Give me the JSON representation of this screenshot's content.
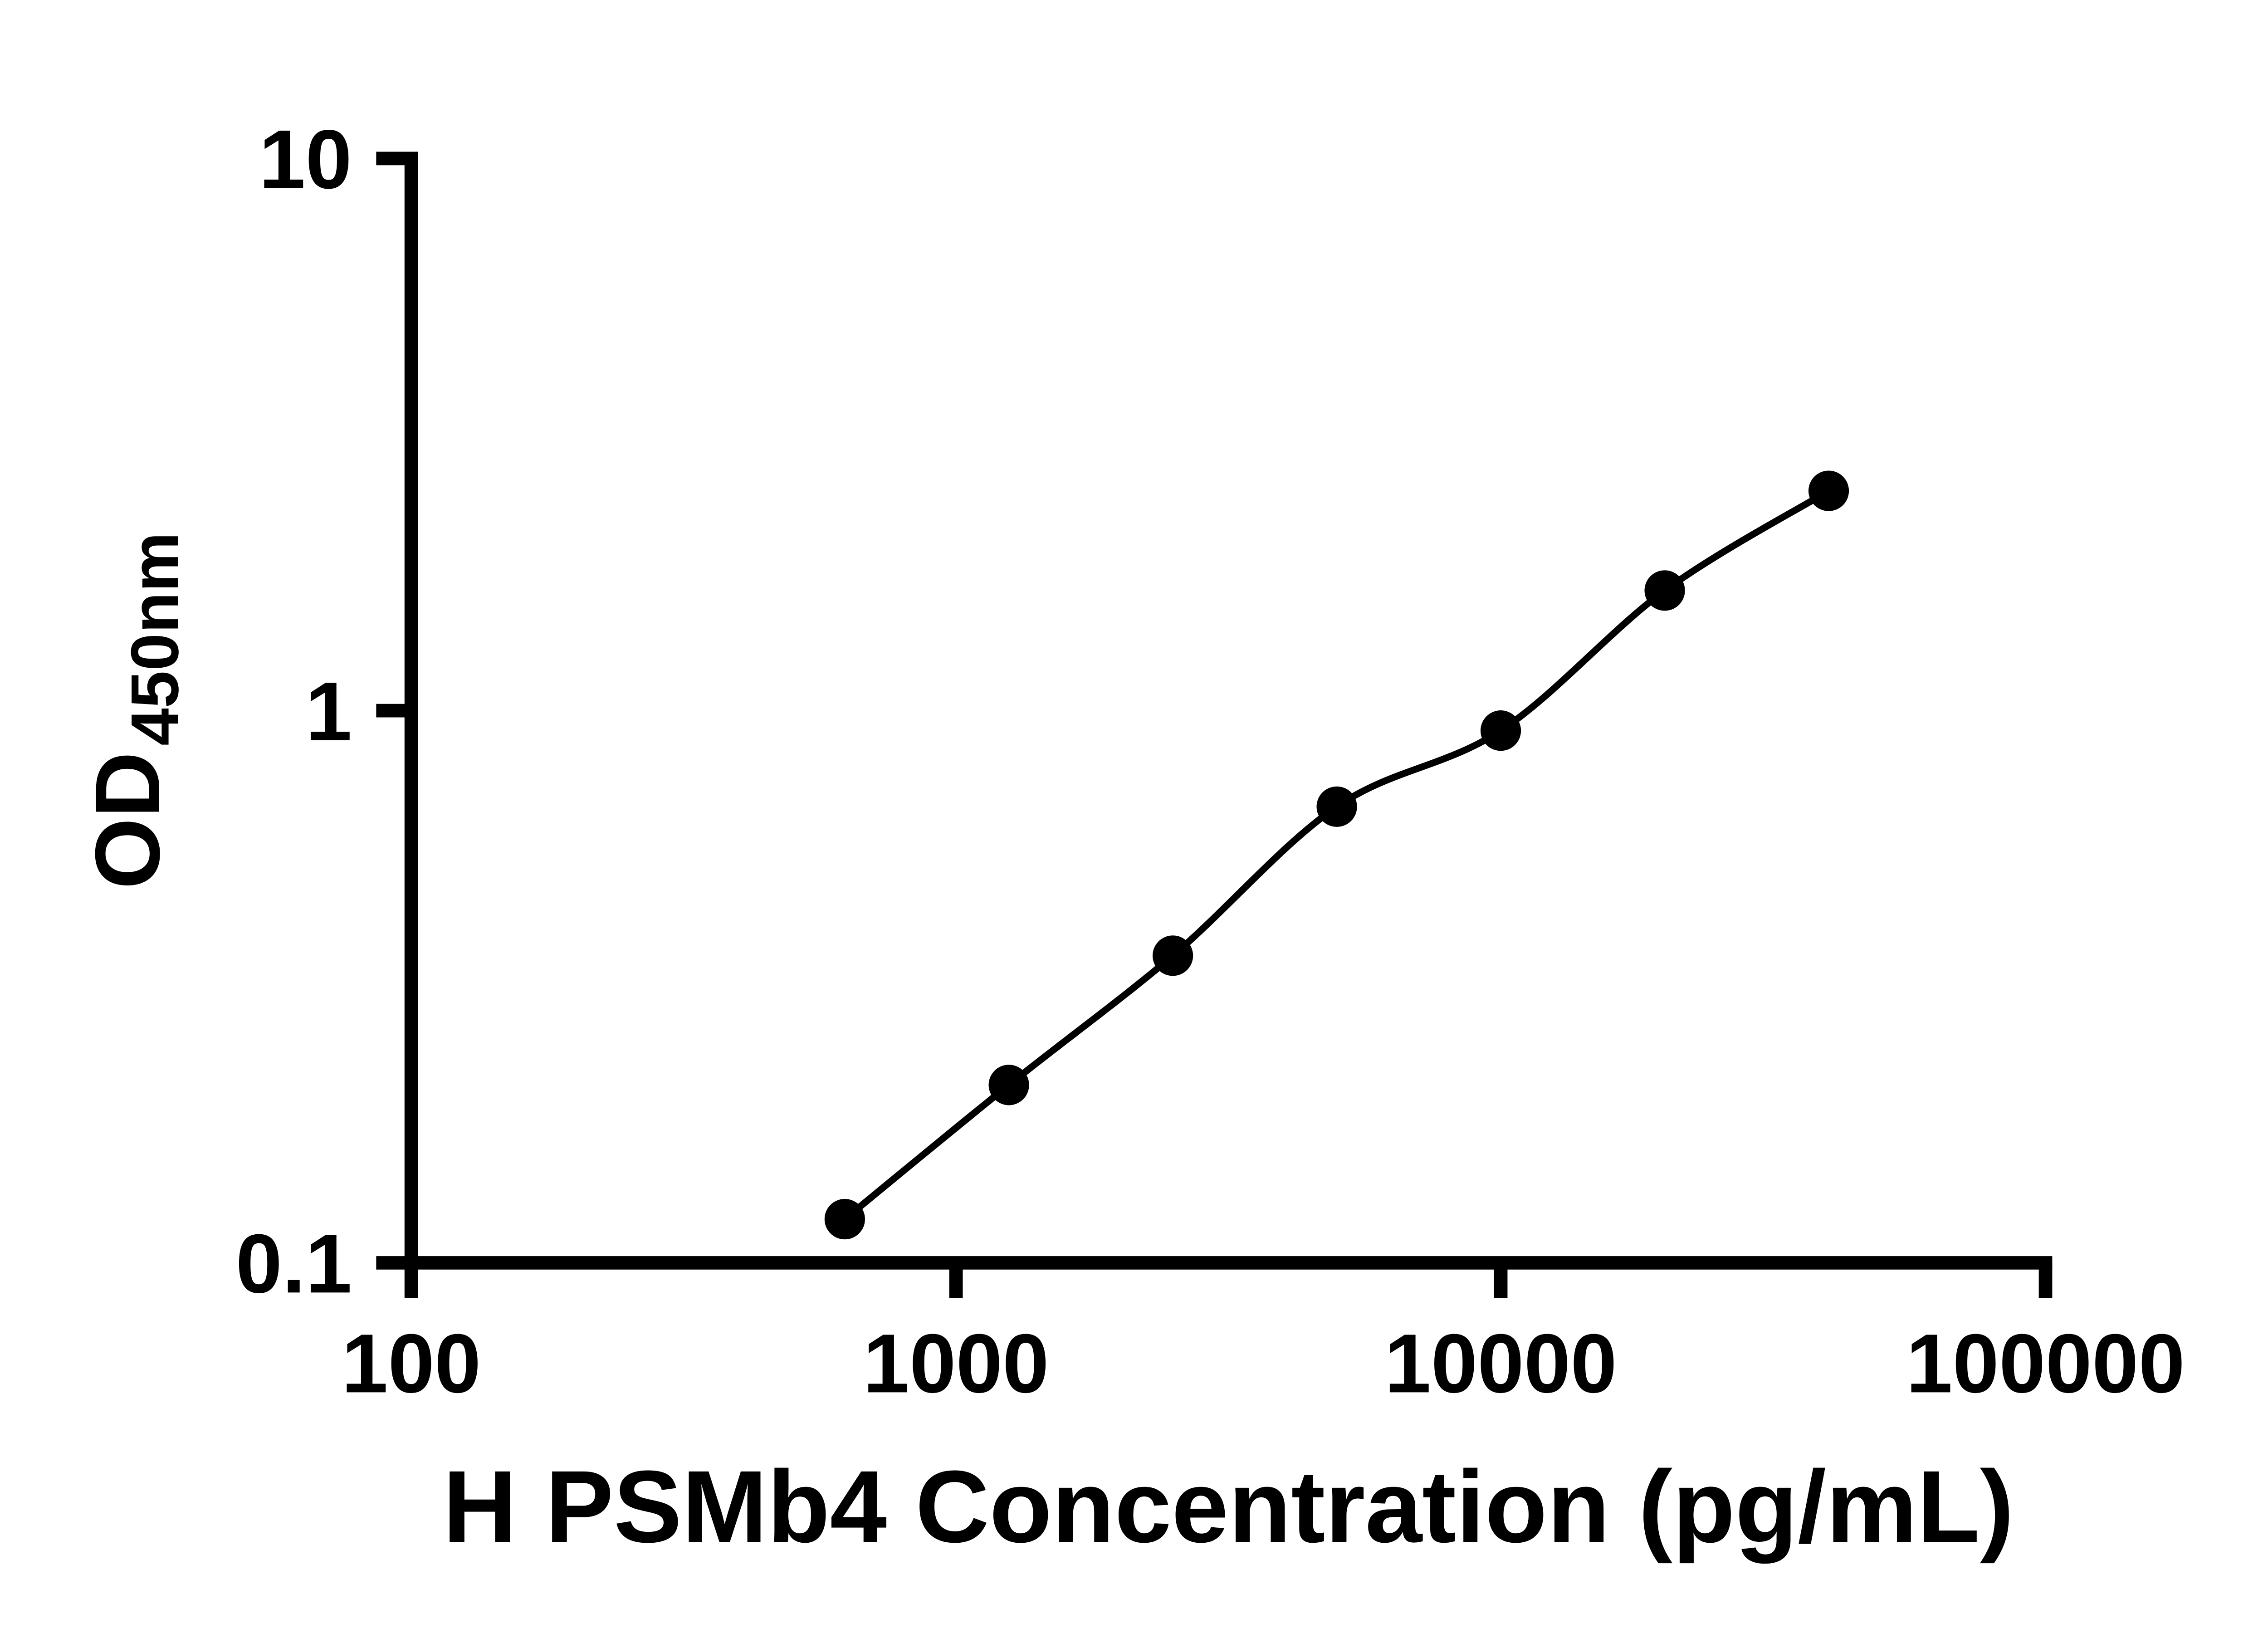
{
  "chart_data": {
    "type": "scatter",
    "title": "",
    "xlabel": "H PSMb4 Concentration (pg/mL)",
    "ylabel": "OD450nm",
    "ylabel_main": "OD",
    "ylabel_sub": "450nm",
    "x_scale": "log10",
    "y_scale": "log10",
    "xlim": [
      100,
      100000
    ],
    "ylim": [
      0.1,
      10
    ],
    "x_ticks": [
      {
        "value": 100,
        "label": "100"
      },
      {
        "value": 1000,
        "label": "1000"
      },
      {
        "value": 10000,
        "label": "10000"
      },
      {
        "value": 100000,
        "label": "100000"
      }
    ],
    "y_ticks": [
      {
        "value": 10,
        "label": "10"
      },
      {
        "value": 1,
        "label": "1"
      },
      {
        "value": 0.1,
        "label": "0.1"
      }
    ],
    "points": [
      {
        "x": 625,
        "y": 0.12
      },
      {
        "x": 1250,
        "y": 0.21
      },
      {
        "x": 2500,
        "y": 0.36
      },
      {
        "x": 5000,
        "y": 0.67
      },
      {
        "x": 10000,
        "y": 0.92
      },
      {
        "x": 20000,
        "y": 1.65
      },
      {
        "x": 40000,
        "y": 2.5
      }
    ],
    "marker_color": "#000000",
    "line_color": "#000000",
    "axis_color": "#000000",
    "background": "#ffffff",
    "grid": false,
    "legend": false
  }
}
